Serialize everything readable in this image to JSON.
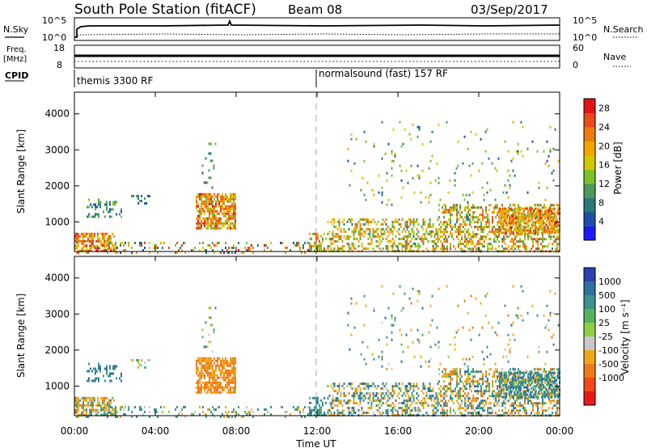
{
  "header": {
    "station": "South Pole Station (fitACF)",
    "beam": "Beam 08",
    "date": "03/Sep/2017"
  },
  "top_panels": {
    "nsky_label": "N.Sky",
    "nsky_ticks": [
      "10^5",
      "10^0"
    ],
    "nsearch_label": "N.Search",
    "nsearch_ticks": [
      "10^5",
      "10^0"
    ],
    "freq_label": "Freq.",
    "freq_unit": "[MHz]",
    "freq_ticks": [
      "18",
      "8"
    ],
    "nave_label": "Nave",
    "nave_ticks": [
      "60",
      "0"
    ],
    "cpid_label": "CPID",
    "cpid_segments": [
      {
        "label": "themis 3300 RF",
        "start_hour": 0
      },
      {
        "label": "normalsound (fast) 157 RF",
        "start_hour": 12
      }
    ]
  },
  "chart_data": [
    {
      "type": "heatmap",
      "quantity": "Power",
      "ylabel": "Slant Range [km]",
      "yticks": [
        1000,
        2000,
        3000,
        4000
      ],
      "ylim": [
        180,
        4600
      ],
      "xlim_hours": [
        0,
        24
      ],
      "colorbar_label": "Power [dB]",
      "colorbar_ticks": [
        "4",
        "8",
        "12",
        "16",
        "20",
        "24",
        "28"
      ],
      "colorbar_range": [
        0,
        30
      ],
      "colors": [
        "#1a1aff",
        "#1e4fa8",
        "#2a7a78",
        "#4e9a5a",
        "#7cc12a",
        "#d6c800",
        "#f5a300",
        "#ef7a10",
        "#e84a1a",
        "#e01414"
      ],
      "echo_regions": [
        {
          "t0": 0.0,
          "t1": 2.0,
          "r0": 180,
          "r1": 700,
          "p": 0.62,
          "v": [
            14,
            28
          ],
          "vel": [
            -700,
            300
          ]
        },
        {
          "t0": 0.6,
          "t1": 2.3,
          "r0": 1150,
          "r1": 1650,
          "p": 0.38,
          "v": [
            5,
            14
          ],
          "vel": [
            100,
            900
          ]
        },
        {
          "t0": 2.8,
          "t1": 3.8,
          "r0": 1500,
          "r1": 1750,
          "p": 0.25,
          "v": [
            5,
            12
          ],
          "vel": [
            -150,
            100
          ]
        },
        {
          "t0": 6.0,
          "t1": 8.0,
          "r0": 850,
          "r1": 1800,
          "p": 0.75,
          "v": [
            12,
            28
          ],
          "vel": [
            -900,
            -150
          ]
        },
        {
          "t0": 6.3,
          "t1": 7.0,
          "r0": 1900,
          "r1": 3200,
          "p": 0.14,
          "v": [
            4,
            14
          ],
          "vel": [
            -300,
            400
          ]
        },
        {
          "t0": 0.0,
          "t1": 12.0,
          "r0": 180,
          "r1": 450,
          "p": 0.2,
          "v": [
            4,
            28
          ],
          "vel": [
            -200,
            400
          ]
        },
        {
          "t0": 11.6,
          "t1": 12.4,
          "r0": 200,
          "r1": 700,
          "p": 0.55,
          "v": [
            10,
            26
          ],
          "vel": [
            0,
            600
          ]
        },
        {
          "t0": 12.5,
          "t1": 18.0,
          "r0": 200,
          "r1": 1100,
          "p": 0.42,
          "v": [
            8,
            24
          ],
          "vel": [
            -600,
            700
          ]
        },
        {
          "t0": 18.0,
          "t1": 24.0,
          "r0": 200,
          "r1": 1500,
          "p": 0.45,
          "v": [
            8,
            26
          ],
          "vel": [
            -700,
            600
          ]
        },
        {
          "t0": 21.0,
          "t1": 24.0,
          "r0": 700,
          "r1": 1400,
          "p": 0.65,
          "v": [
            14,
            28
          ],
          "vel": [
            -200,
            800
          ]
        },
        {
          "t0": 13.5,
          "t1": 24.0,
          "r0": 1500,
          "r1": 3800,
          "p": 0.03,
          "v": [
            4,
            20
          ],
          "vel": [
            -600,
            600
          ]
        }
      ]
    },
    {
      "type": "heatmap",
      "quantity": "Velocity",
      "ylabel": "Slant Range [km]",
      "yticks": [
        1000,
        2000,
        3000,
        4000
      ],
      "ylim": [
        180,
        4600
      ],
      "xlim_hours": [
        0,
        24
      ],
      "xticks": [
        "00:00",
        "04:00",
        "08:00",
        "12:00",
        "16:00",
        "20:00",
        "00:00"
      ],
      "xlabel": "Time UT",
      "colorbar_label": "Velocity [m s⁻¹]",
      "colorbar_ticks": [
        "1000",
        "500",
        "100",
        "25",
        "-25",
        "-100",
        "-500",
        "-1000"
      ],
      "colorbar_values": [
        1000,
        500,
        100,
        25,
        -25,
        -100,
        -500,
        -1000
      ],
      "colors": [
        "#2e3fb0",
        "#2f6fa2",
        "#3b9090",
        "#56b060",
        "#8dd044",
        "#c8c8c8",
        "#f0a818",
        "#f07a18",
        "#f04818",
        "#e81818"
      ]
    }
  ]
}
